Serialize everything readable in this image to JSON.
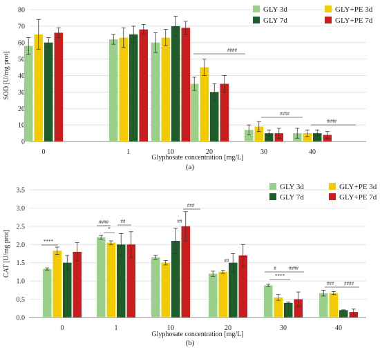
{
  "colors": {
    "gly3": "#9bd08b",
    "glype3": "#f2cc00",
    "gly7": "#1f5e2b",
    "glype7": "#c81e1e",
    "axis": "#8c8c8c",
    "grid": "#d9d9d9"
  },
  "chart_data": [
    {
      "type": "bar",
      "panel_label": "(a)",
      "ylabel": "SOD [U/mg prot]",
      "xlabel": "Glyphosate concentration [mg/L]",
      "categories": [
        "0",
        "1",
        "10",
        "20",
        "30",
        "40"
      ],
      "ylim": [
        0,
        80
      ],
      "yticks": [
        "0",
        "10",
        "20",
        "30",
        "40",
        "50",
        "60",
        "70",
        "80"
      ],
      "grid": true,
      "legend_placement": "top-right",
      "series": [
        {
          "name": "GLY 3d",
          "values": [
            58,
            62,
            60,
            35,
            7,
            5
          ],
          "errors": [
            5,
            3,
            6,
            4,
            3,
            3
          ]
        },
        {
          "name": "GLY+PE 3d",
          "values": [
            65,
            63,
            63,
            45,
            9,
            5
          ],
          "errors": [
            9,
            6,
            5,
            5,
            3,
            2
          ]
        },
        {
          "name": "GLY 7d",
          "values": [
            60,
            65,
            70,
            30,
            5,
            5
          ],
          "errors": [
            3,
            5,
            6,
            5,
            2,
            2
          ]
        },
        {
          "name": "GLY+PE 7d",
          "values": [
            66,
            68,
            69,
            35,
            5,
            4
          ],
          "errors": [
            3,
            3,
            4,
            5,
            3,
            2
          ]
        }
      ],
      "annotations": [
        {
          "text": "####",
          "category": "20"
        },
        {
          "text": "####",
          "category": "30"
        },
        {
          "text": "####",
          "category": "40"
        }
      ]
    },
    {
      "type": "bar",
      "panel_label": "(b)",
      "ylabel": "CAT [U/mg prot]",
      "xlabel": "Glyphosate concentration [mg/L]",
      "categories": [
        "0",
        "1",
        "10",
        "20",
        "30",
        "40"
      ],
      "ylim": [
        0,
        3.5
      ],
      "yticks": [
        "0.0",
        "0.5",
        "1.0",
        "1.5",
        "2.0",
        "2.5",
        "3.0",
        "3.5"
      ],
      "grid": true,
      "legend_placement": "top-right",
      "series": [
        {
          "name": "GLY 3d",
          "values": [
            1.33,
            2.2,
            1.65,
            1.2,
            0.88,
            0.67
          ],
          "errors": [
            0.03,
            0.05,
            0.05,
            0.07,
            0.03,
            0.08
          ]
        },
        {
          "name": "GLY+PE 3d",
          "values": [
            1.83,
            2.05,
            1.5,
            1.25,
            0.55,
            0.67
          ],
          "errors": [
            0.1,
            0.05,
            0.06,
            0.04,
            0.08,
            0.04
          ]
        },
        {
          "name": "GLY 7d",
          "values": [
            1.5,
            2.0,
            2.1,
            1.5,
            0.4,
            0.2
          ],
          "errors": [
            0.2,
            0.3,
            0.35,
            0.25,
            0.02,
            0.01
          ]
        },
        {
          "name": "GLY+PE 7d",
          "values": [
            1.8,
            2.0,
            2.5,
            1.7,
            0.5,
            0.15
          ],
          "errors": [
            0.25,
            0.35,
            0.4,
            0.3,
            0.2,
            0.08
          ]
        }
      ],
      "annotations": [
        {
          "text": "****",
          "category": "0"
        },
        {
          "text": "####",
          "category": "1"
        },
        {
          "text": "*",
          "category": "1"
        },
        {
          "text": "##",
          "category": "1"
        },
        {
          "text": "##",
          "category": "10"
        },
        {
          "text": "###",
          "category": "10"
        },
        {
          "text": "##",
          "category": "20"
        },
        {
          "text": "#",
          "category": "30"
        },
        {
          "text": "****",
          "category": "30"
        },
        {
          "text": "####",
          "category": "30"
        },
        {
          "text": "###",
          "category": "40"
        },
        {
          "text": "####",
          "category": "40"
        }
      ]
    }
  ]
}
